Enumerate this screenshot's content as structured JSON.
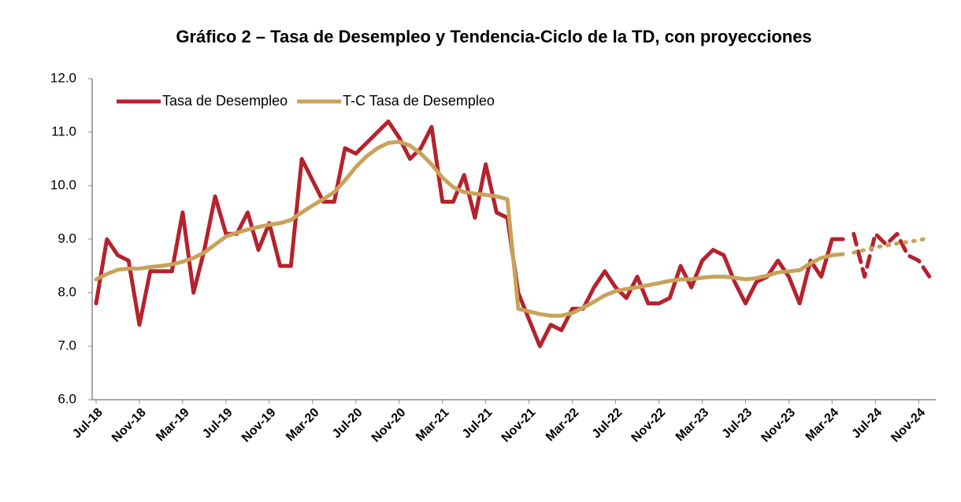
{
  "chart_data": {
    "type": "line",
    "title": "Gráfico 2 – Tasa de Desempleo y Tendencia-Ciclo de la TD, con proyecciones",
    "categories": [
      "Jul-18",
      null,
      null,
      null,
      "Nov-18",
      null,
      null,
      null,
      "Mar-19",
      null,
      null,
      null,
      "Jul-19",
      null,
      null,
      null,
      "Nov-19",
      null,
      null,
      null,
      "Mar-20",
      null,
      null,
      null,
      "Jul-20",
      null,
      null,
      null,
      "Nov-20",
      null,
      null,
      null,
      "Mar-21",
      null,
      null,
      null,
      "Jul-21",
      null,
      null,
      null,
      "Nov-21",
      null,
      null,
      null,
      "Mar-22",
      null,
      null,
      null,
      "Jul-22",
      null,
      null,
      null,
      "Nov-22",
      null,
      null,
      null,
      "Mar-23",
      null,
      null,
      null,
      "Jul-23",
      null,
      null,
      null,
      "Nov-23",
      null,
      null,
      null,
      "Mar-24",
      null,
      null,
      null,
      "Jul-24",
      null,
      null,
      null,
      "Nov-24",
      null
    ],
    "series": [
      {
        "name": "Tasa de Desempleo",
        "color": "#b5222d",
        "values": [
          7.8,
          9.0,
          8.7,
          8.6,
          7.4,
          8.4,
          8.4,
          8.4,
          9.5,
          8.0,
          8.8,
          9.8,
          9.1,
          9.1,
          9.5,
          8.8,
          9.3,
          8.5,
          8.5,
          10.5,
          10.1,
          9.7,
          9.7,
          10.7,
          10.6,
          10.8,
          11.0,
          11.2,
          10.9,
          10.5,
          10.7,
          11.1,
          9.7,
          9.7,
          10.2,
          9.4,
          10.4,
          9.5,
          9.4,
          8.0,
          7.5,
          7.0,
          7.4,
          7.3,
          7.7,
          7.7,
          8.1,
          8.4,
          8.1,
          7.9,
          8.3,
          7.8,
          7.8,
          7.9,
          8.5,
          8.1,
          8.6,
          8.8,
          8.7,
          8.2,
          7.8,
          8.2,
          8.3,
          8.6,
          8.3,
          7.8,
          8.6,
          8.3,
          9.0,
          9.0,
          null,
          null,
          null,
          null,
          null,
          null,
          null,
          null
        ],
        "projection_values": [
          null,
          null,
          null,
          null,
          null,
          null,
          null,
          null,
          null,
          null,
          null,
          null,
          null,
          null,
          null,
          null,
          null,
          null,
          null,
          null,
          null,
          null,
          null,
          null,
          null,
          null,
          null,
          null,
          null,
          null,
          null,
          null,
          null,
          null,
          null,
          null,
          null,
          null,
          null,
          null,
          null,
          null,
          null,
          null,
          null,
          null,
          null,
          null,
          null,
          null,
          null,
          null,
          null,
          null,
          null,
          null,
          null,
          null,
          null,
          null,
          null,
          null,
          null,
          null,
          null,
          null,
          null,
          null,
          null,
          null,
          9.1,
          8.3,
          9.1,
          8.9,
          9.1,
          8.7,
          8.6,
          8.3
        ],
        "projection_style": "dashed"
      },
      {
        "name": "T-C Tasa de Desempleo",
        "color": "#c9a25a",
        "values": [
          8.25,
          8.35,
          8.43,
          8.45,
          8.45,
          8.48,
          8.5,
          8.53,
          8.58,
          8.65,
          8.75,
          8.9,
          9.05,
          9.12,
          9.18,
          9.23,
          9.27,
          9.3,
          9.36,
          9.5,
          9.63,
          9.75,
          9.88,
          10.1,
          10.35,
          10.55,
          10.7,
          10.8,
          10.82,
          10.75,
          10.6,
          10.4,
          10.15,
          9.97,
          9.88,
          9.85,
          9.83,
          9.8,
          9.75,
          7.7,
          7.65,
          7.6,
          7.57,
          7.57,
          7.62,
          7.72,
          7.83,
          7.95,
          8.03,
          8.07,
          8.1,
          8.14,
          8.18,
          8.22,
          8.25,
          8.25,
          8.28,
          8.3,
          8.3,
          8.28,
          8.25,
          8.27,
          8.32,
          8.38,
          8.4,
          8.42,
          8.55,
          8.65,
          8.7,
          8.72,
          null,
          null,
          null,
          null,
          null,
          null,
          null,
          null
        ],
        "projection_values": [
          null,
          null,
          null,
          null,
          null,
          null,
          null,
          null,
          null,
          null,
          null,
          null,
          null,
          null,
          null,
          null,
          null,
          null,
          null,
          null,
          null,
          null,
          null,
          null,
          null,
          null,
          null,
          null,
          null,
          null,
          null,
          null,
          null,
          null,
          null,
          null,
          null,
          null,
          null,
          null,
          null,
          null,
          null,
          null,
          null,
          null,
          null,
          null,
          null,
          null,
          null,
          null,
          null,
          null,
          null,
          null,
          null,
          null,
          null,
          null,
          null,
          null,
          null,
          null,
          null,
          null,
          null,
          null,
          null,
          null,
          8.75,
          8.8,
          8.85,
          8.88,
          8.92,
          8.95,
          8.98,
          9.03
        ],
        "projection_style": "dotted"
      }
    ],
    "ylim": [
      6,
      12
    ],
    "yticks": [
      {
        "value": 6,
        "label": "6.0"
      },
      {
        "value": 7,
        "label": "7.0"
      },
      {
        "value": 8,
        "label": "8.0"
      },
      {
        "value": 9,
        "label": "9.0"
      },
      {
        "value": 10,
        "label": "10.0"
      },
      {
        "value": 11,
        "label": "11.0"
      },
      {
        "value": 12,
        "label": "12.0"
      }
    ],
    "grid": false,
    "legend": "top-left"
  }
}
